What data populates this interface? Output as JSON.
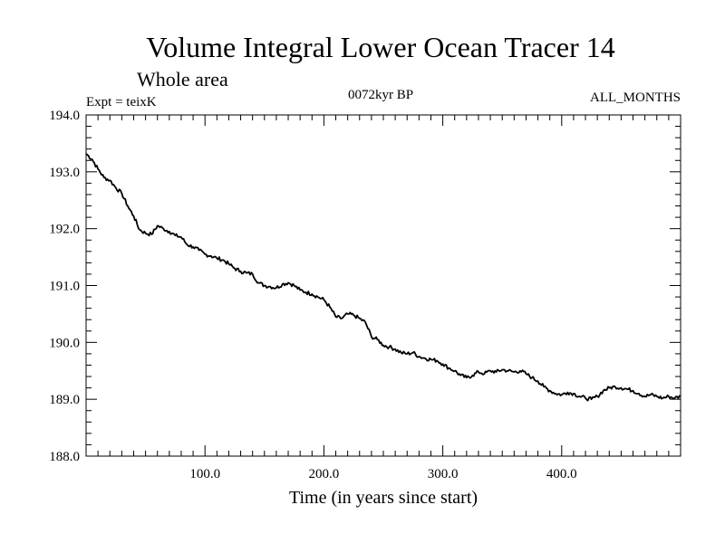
{
  "chart_data": {
    "type": "line",
    "title": "Volume Integral Lower Ocean Tracer 14",
    "subtitle": "Whole area",
    "annotations": {
      "left": "Expt = teixK",
      "center": "0072kyr BP",
      "right": "ALL_MONTHS"
    },
    "xlabel": "Time (in years since start)",
    "ylabel": "",
    "xlim": [
      0,
      500
    ],
    "ylim": [
      188.0,
      194.0
    ],
    "x_ticks": [
      100,
      200,
      300,
      400
    ],
    "x_tick_labels": [
      "100.0",
      "200.0",
      "300.0",
      "400.0"
    ],
    "y_ticks": [
      188,
      189,
      190,
      191,
      192,
      193,
      194
    ],
    "y_tick_labels": [
      "188.0",
      "189.0",
      "190.0",
      "191.0",
      "192.0",
      "193.0",
      "194.0"
    ],
    "grid": false,
    "color": "#000000",
    "series": [
      {
        "x": [
          0,
          5,
          10,
          15,
          20,
          25,
          30,
          35,
          40,
          45,
          50,
          55,
          60,
          65,
          70,
          75,
          80,
          85,
          90,
          95,
          100,
          105,
          110,
          115,
          120,
          125,
          130,
          135,
          140,
          145,
          150,
          155,
          160,
          165,
          170,
          175,
          180,
          185,
          190,
          195,
          200,
          205,
          210,
          215,
          220,
          225,
          230,
          235,
          240,
          245,
          250,
          255,
          260,
          265,
          270,
          275,
          280,
          285,
          290,
          295,
          300,
          305,
          310,
          315,
          320,
          325,
          330,
          335,
          340,
          345,
          350,
          355,
          360,
          365,
          370,
          375,
          380,
          385,
          390,
          395,
          400,
          405,
          410,
          415,
          420,
          425,
          430,
          435,
          440,
          445,
          450,
          455,
          460,
          465,
          470,
          475,
          480,
          485,
          490,
          495,
          500
        ],
        "values": [
          193.32,
          193.22,
          193.05,
          192.9,
          192.85,
          192.72,
          192.62,
          192.4,
          192.22,
          191.98,
          191.92,
          191.9,
          192.05,
          192.0,
          191.95,
          191.88,
          191.85,
          191.72,
          191.68,
          191.62,
          191.55,
          191.52,
          191.48,
          191.45,
          191.38,
          191.3,
          191.25,
          191.22,
          191.2,
          191.05,
          191.0,
          190.98,
          190.96,
          191.02,
          191.05,
          191.0,
          190.92,
          190.88,
          190.85,
          190.8,
          190.75,
          190.62,
          190.45,
          190.42,
          190.5,
          190.48,
          190.42,
          190.35,
          190.1,
          190.05,
          189.95,
          189.92,
          189.88,
          189.82,
          189.8,
          189.82,
          189.75,
          189.72,
          189.7,
          189.68,
          189.62,
          189.55,
          189.5,
          189.42,
          189.38,
          189.42,
          189.48,
          189.45,
          189.5,
          189.48,
          189.52,
          189.5,
          189.48,
          189.5,
          189.45,
          189.38,
          189.32,
          189.22,
          189.15,
          189.1,
          189.08,
          189.12,
          189.1,
          189.05,
          189.02,
          189.0,
          189.05,
          189.15,
          189.2,
          189.22,
          189.2,
          189.18,
          189.15,
          189.1,
          189.05,
          189.08,
          189.05,
          189.02,
          189.05,
          189.02,
          189.05
        ]
      }
    ]
  }
}
